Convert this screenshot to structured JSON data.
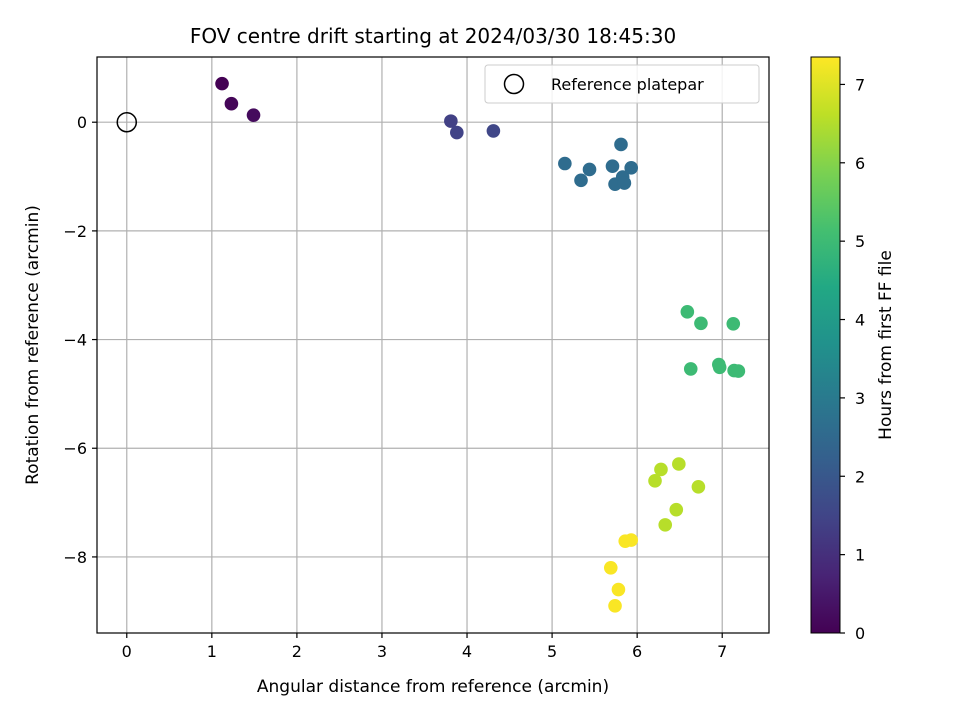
{
  "chart_data": {
    "type": "scatter",
    "title": "FOV centre drift starting at 2024/03/30 18:45:30",
    "xlabel": "Angular distance from reference (arcmin)",
    "ylabel": "Rotation from reference (arcmin)",
    "xlim": [
      -0.35,
      7.55
    ],
    "ylim": [
      -9.4,
      1.2
    ],
    "xticks": [
      0,
      1,
      2,
      3,
      4,
      5,
      6,
      7
    ],
    "yticks": [
      0,
      -2,
      -4,
      -6,
      -8
    ],
    "xtick_labels": [
      "0",
      "1",
      "2",
      "3",
      "4",
      "5",
      "6",
      "7"
    ],
    "ytick_labels": [
      "0",
      "−2",
      "−4",
      "−6",
      "−8"
    ],
    "grid": true,
    "legend": {
      "position": "top-right",
      "entries": [
        {
          "label": "Reference platepar",
          "marker": "open-circle",
          "x": 0,
          "y": 0
        }
      ]
    },
    "colorbar": {
      "label": "Hours from first FF file",
      "colormap": "viridis",
      "range": [
        0,
        7.35
      ],
      "ticks": [
        0,
        1,
        2,
        3,
        4,
        5,
        6,
        7
      ],
      "tick_labels": [
        "0",
        "1",
        "2",
        "3",
        "4",
        "5",
        "6",
        "7"
      ]
    },
    "series": [
      {
        "points": [
          {
            "x": 1.12,
            "y": 0.71,
            "c": 0.0
          },
          {
            "x": 1.23,
            "y": 0.34,
            "c": 0.1
          },
          {
            "x": 1.49,
            "y": 0.13,
            "c": 0.2
          },
          {
            "x": 3.81,
            "y": 0.02,
            "c": 1.4
          },
          {
            "x": 3.88,
            "y": -0.19,
            "c": 1.45
          },
          {
            "x": 4.31,
            "y": -0.16,
            "c": 1.55
          },
          {
            "x": 5.15,
            "y": -0.76,
            "c": 2.6
          },
          {
            "x": 5.34,
            "y": -1.07,
            "c": 2.6
          },
          {
            "x": 5.44,
            "y": -0.87,
            "c": 2.6
          },
          {
            "x": 5.71,
            "y": -0.81,
            "c": 2.6
          },
          {
            "x": 5.74,
            "y": -1.14,
            "c": 2.6
          },
          {
            "x": 5.81,
            "y": -0.41,
            "c": 2.6
          },
          {
            "x": 5.83,
            "y": -1.01,
            "c": 2.6
          },
          {
            "x": 5.85,
            "y": -1.12,
            "c": 2.6
          },
          {
            "x": 5.93,
            "y": -0.84,
            "c": 2.6
          },
          {
            "x": 6.59,
            "y": -3.49,
            "c": 5.0
          },
          {
            "x": 6.75,
            "y": -3.7,
            "c": 5.0
          },
          {
            "x": 7.13,
            "y": -3.71,
            "c": 5.0
          },
          {
            "x": 6.63,
            "y": -4.54,
            "c": 5.0
          },
          {
            "x": 6.96,
            "y": -4.46,
            "c": 5.0
          },
          {
            "x": 6.97,
            "y": -4.51,
            "c": 5.0
          },
          {
            "x": 7.14,
            "y": -4.57,
            "c": 5.0
          },
          {
            "x": 7.19,
            "y": -4.58,
            "c": 5.0
          },
          {
            "x": 6.49,
            "y": -6.29,
            "c": 6.55
          },
          {
            "x": 6.28,
            "y": -6.39,
            "c": 6.55
          },
          {
            "x": 6.21,
            "y": -6.6,
            "c": 6.55
          },
          {
            "x": 6.72,
            "y": -6.71,
            "c": 6.55
          },
          {
            "x": 6.46,
            "y": -7.13,
            "c": 6.55
          },
          {
            "x": 6.33,
            "y": -7.41,
            "c": 6.55
          },
          {
            "x": 5.86,
            "y": -7.71,
            "c": 7.3
          },
          {
            "x": 5.93,
            "y": -7.69,
            "c": 7.3
          },
          {
            "x": 5.69,
            "y": -8.2,
            "c": 7.3
          },
          {
            "x": 5.78,
            "y": -8.6,
            "c": 7.3
          },
          {
            "x": 5.74,
            "y": -8.9,
            "c": 7.3
          }
        ]
      }
    ]
  }
}
